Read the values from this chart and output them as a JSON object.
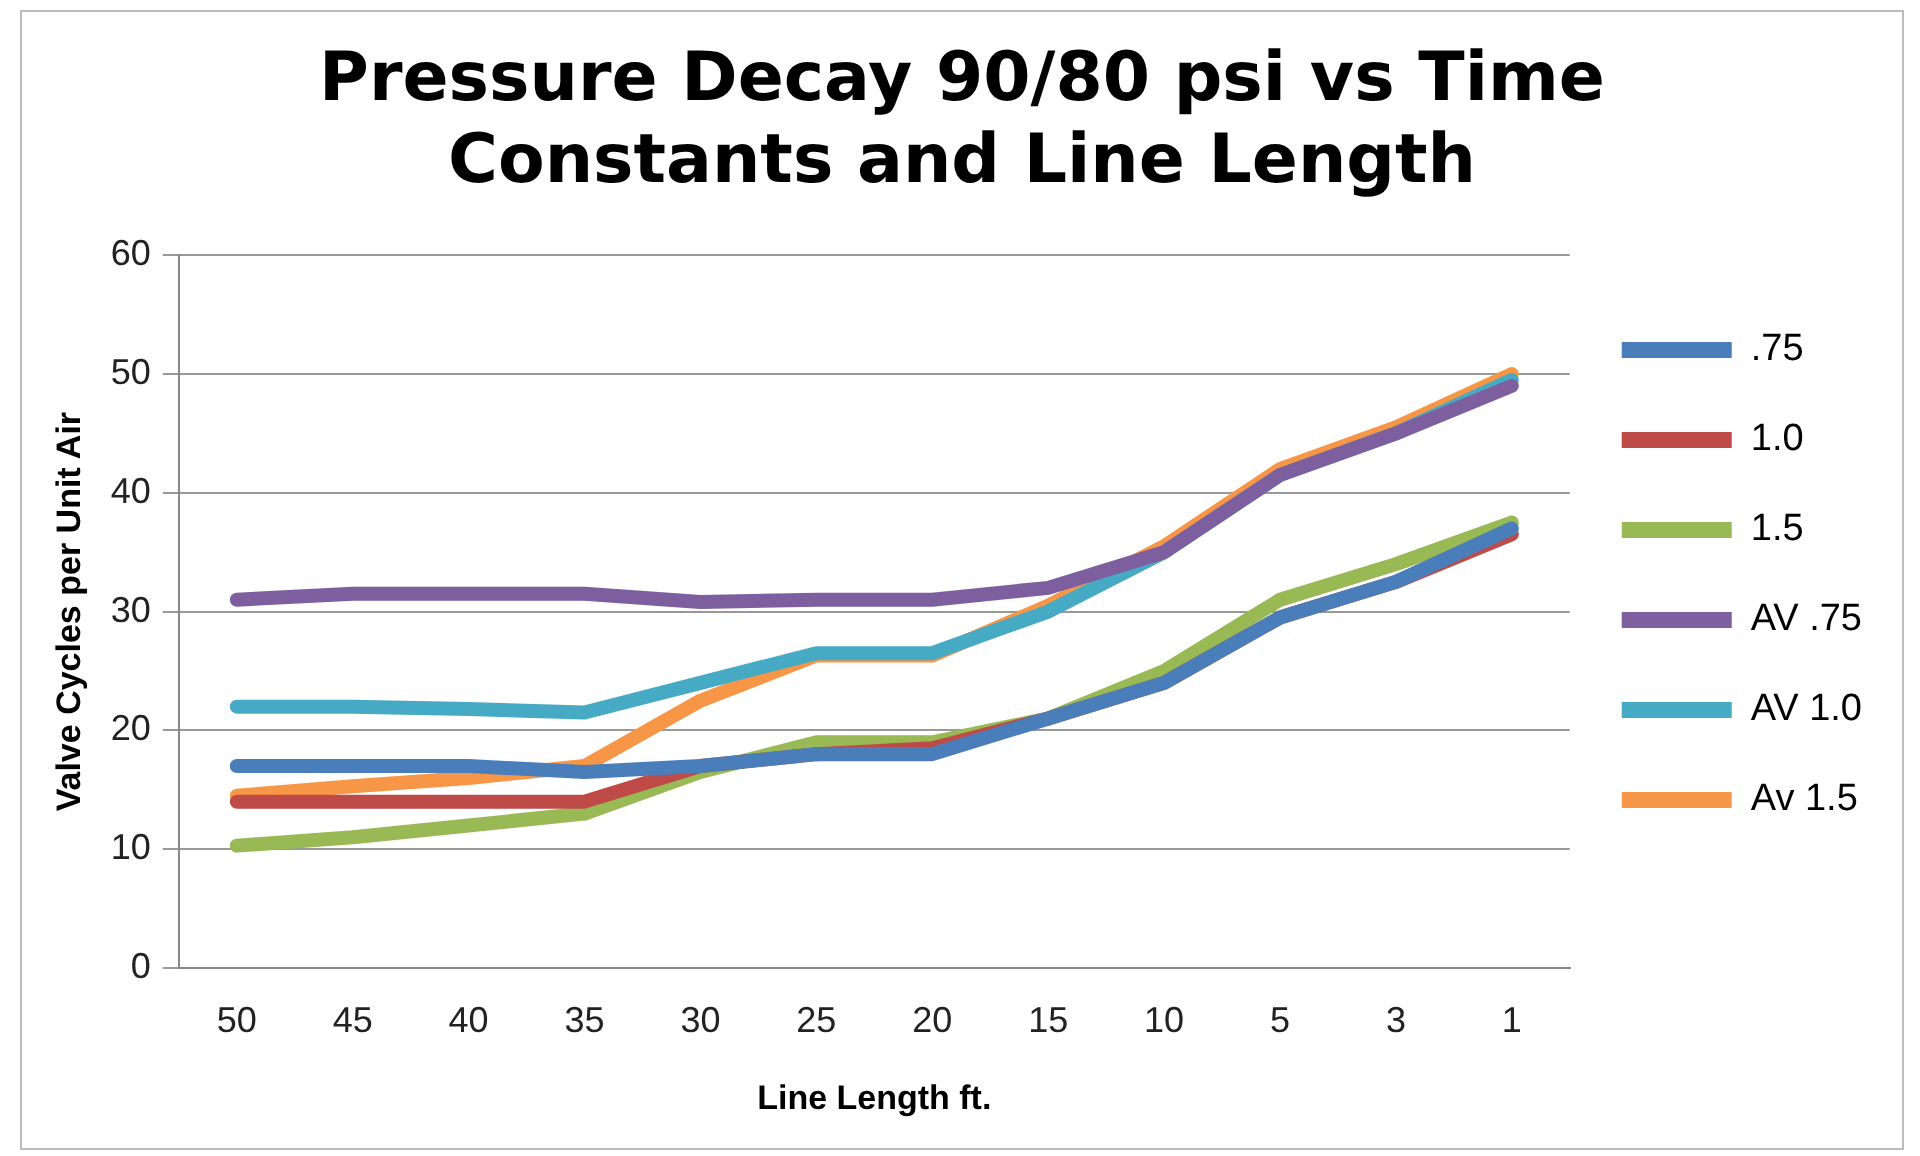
{
  "chart_data": {
    "type": "line",
    "title": "Pressure Decay 90/80 psi vs Time Constants and Line Length",
    "xlabel": "Line Length ft.",
    "ylabel": "Valve Cycles per Unit Air",
    "categories": [
      "50",
      "45",
      "40",
      "35",
      "30",
      "25",
      "20",
      "15",
      "10",
      "5",
      "3",
      "1"
    ],
    "series": [
      {
        "name": ".75",
        "color": "#4a7ebb",
        "values": [
          17,
          17,
          17,
          16.5,
          17,
          18,
          18,
          21,
          24,
          29.5,
          32.5,
          37
        ]
      },
      {
        "name": "1.0",
        "color": "#be4b48",
        "values": [
          14,
          14,
          14,
          14,
          17,
          18,
          18.5,
          21,
          24,
          29.5,
          32.5,
          36.5
        ]
      },
      {
        "name": "1.5",
        "color": "#98b954",
        "values": [
          10.3,
          11,
          12,
          13,
          16.5,
          19,
          19,
          21,
          25,
          31,
          34,
          37.5
        ]
      },
      {
        "name": "AV .75",
        "color": "#7d5fa0",
        "values": [
          31,
          31.5,
          31.5,
          31.5,
          30.8,
          31,
          31,
          32,
          35,
          41.5,
          45,
          49
        ]
      },
      {
        "name": "AV 1.0",
        "color": "#46aac5",
        "values": [
          22,
          22,
          21.8,
          21.5,
          24,
          26.5,
          26.5,
          30,
          35,
          41.5,
          45,
          49.5
        ]
      },
      {
        "name": "Av 1.5",
        "color": "#f79646",
        "values": [
          14.5,
          15.3,
          16,
          17,
          22.5,
          26.3,
          26.3,
          30.5,
          35.5,
          42,
          45.5,
          50
        ]
      }
    ],
    "ylim": [
      0,
      60
    ],
    "yticks": [
      0,
      10,
      20,
      30,
      40,
      50,
      60
    ],
    "grid": "y",
    "legend": "right",
    "marker": "none",
    "line_style": "solid"
  }
}
